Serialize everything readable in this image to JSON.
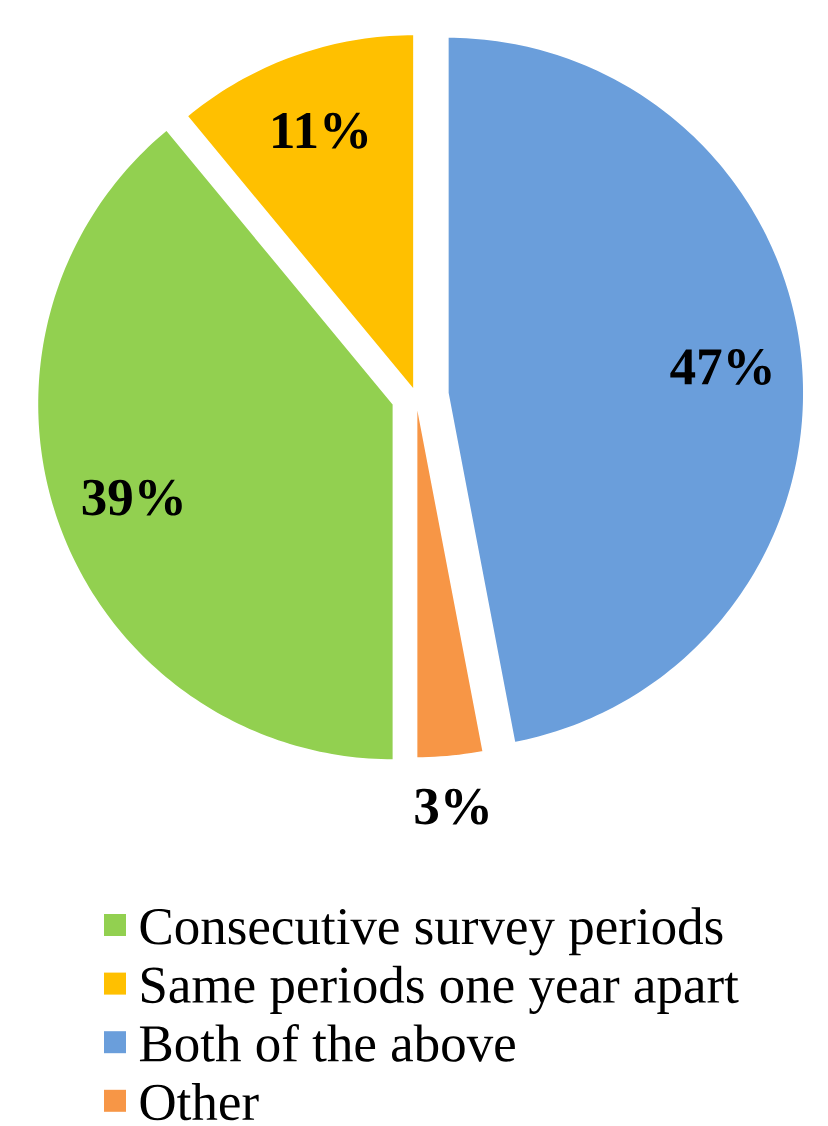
{
  "chart_data": {
    "type": "pie",
    "categories": [
      "Consecutive survey periods",
      "Same periods one year apart",
      "Both of the above",
      "Other"
    ],
    "values": [
      39,
      11,
      47,
      3
    ],
    "colors": [
      "#92d050",
      "#ffc000",
      "#6a9edb",
      "#f79646"
    ],
    "value_labels": [
      "39%",
      "11%",
      "47%",
      "3%"
    ],
    "legend": "bottom"
  }
}
